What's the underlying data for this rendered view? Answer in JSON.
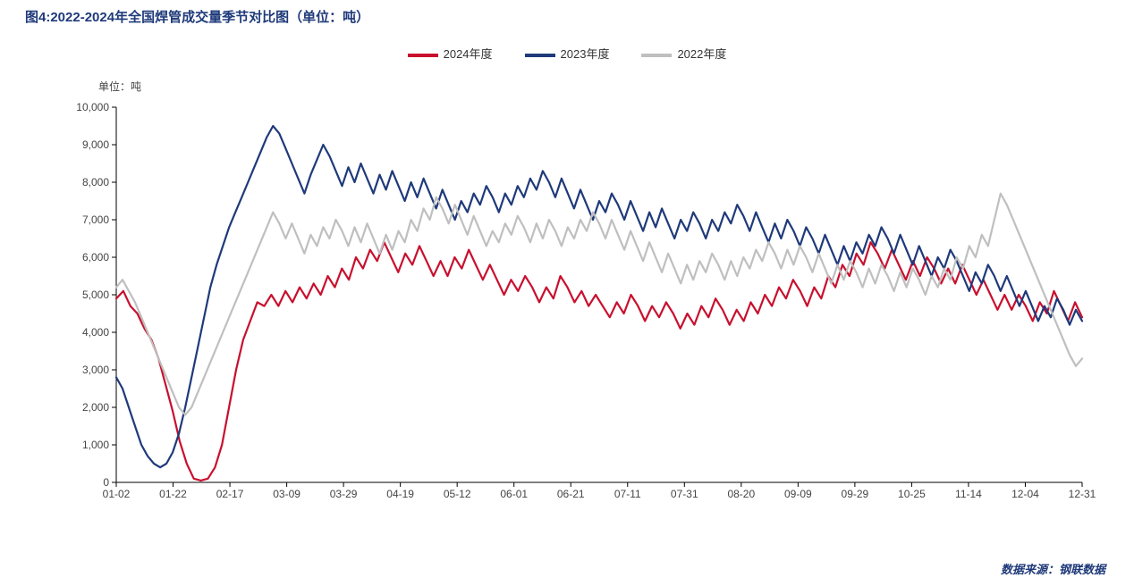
{
  "title": "图4:2022-2024年全国焊管成交量季节对比图（单位：吨）",
  "ylabel": "单位：吨",
  "source": "数据来源：钢联数据",
  "chart": {
    "type": "line",
    "background_color": "#ffffff",
    "axis_color": "#000000",
    "tick_color": "#000000",
    "font_size_ticks": 12,
    "font_size_title": 15,
    "title_color": "#1f3a7a",
    "line_width": 2.2,
    "ylim": [
      0,
      10000
    ],
    "ytick_step": 1000,
    "ytick_labels": [
      "0",
      "1,000",
      "2,000",
      "3,000",
      "4,000",
      "5,000",
      "6,000",
      "7,000",
      "8,000",
      "9,000",
      "10,000"
    ],
    "x_categories": [
      "01-02",
      "01-22",
      "02-17",
      "03-09",
      "03-29",
      "04-19",
      "05-12",
      "06-01",
      "06-21",
      "07-11",
      "07-31",
      "08-20",
      "09-09",
      "09-29",
      "10-25",
      "11-14",
      "12-04",
      "12-31"
    ],
    "legend": {
      "position": "top-center",
      "items": [
        {
          "label": "2024年度",
          "color": "#c8102e"
        },
        {
          "label": "2023年度",
          "color": "#1f3a7a"
        },
        {
          "label": "2022年度",
          "color": "#bfbfbf"
        }
      ]
    },
    "series": [
      {
        "name": "2024年度",
        "color": "#c8102e",
        "data": [
          4900,
          5100,
          4700,
          4500,
          4100,
          3800,
          3300,
          2600,
          1900,
          1100,
          500,
          100,
          50,
          100,
          400,
          1000,
          2000,
          3000,
          3800,
          4300,
          4800,
          4700,
          5000,
          4700,
          5100,
          4800,
          5200,
          4900,
          5300,
          5000,
          5500,
          5200,
          5700,
          5400,
          6000,
          5700,
          6200,
          5900,
          6400,
          6000,
          5600,
          6100,
          5800,
          6300,
          5900,
          5500,
          5900,
          5500,
          6000,
          5700,
          6200,
          5800,
          5400,
          5800,
          5400,
          5000,
          5400,
          5100,
          5500,
          5200,
          4800,
          5200,
          4900,
          5500,
          5200,
          4800,
          5100,
          4700,
          5000,
          4700,
          4400,
          4800,
          4500,
          5000,
          4700,
          4300,
          4700,
          4400,
          4800,
          4500,
          4100,
          4500,
          4200,
          4700,
          4400,
          4900,
          4600,
          4200,
          4600,
          4300,
          4800,
          4500,
          5000,
          4700,
          5200,
          4900,
          5400,
          5100,
          4700,
          5200,
          4900,
          5500,
          5200,
          5800,
          5500,
          6100,
          5800,
          6400,
          6100,
          5700,
          6200,
          5800,
          5400,
          5900,
          5500,
          6000,
          5700,
          5300,
          5700,
          5300,
          5800,
          5400,
          5000,
          5400,
          5000,
          4600,
          5000,
          4600,
          5000,
          4700,
          4300,
          4800,
          4500,
          5100,
          4700,
          4300,
          4800,
          4400
        ]
      },
      {
        "name": "2023年度",
        "color": "#1f3a7a",
        "data": [
          2800,
          2500,
          2000,
          1500,
          1000,
          700,
          500,
          400,
          500,
          800,
          1300,
          2000,
          2800,
          3600,
          4400,
          5200,
          5800,
          6300,
          6800,
          7200,
          7600,
          8000,
          8400,
          8800,
          9200,
          9500,
          9300,
          8900,
          8500,
          8100,
          7700,
          8200,
          8600,
          9000,
          8700,
          8300,
          7900,
          8400,
          8000,
          8500,
          8100,
          7700,
          8200,
          7800,
          8300,
          7900,
          7500,
          8000,
          7600,
          8100,
          7700,
          7300,
          7800,
          7400,
          7000,
          7500,
          7200,
          7700,
          7400,
          7900,
          7600,
          7200,
          7700,
          7400,
          7900,
          7600,
          8100,
          7800,
          8300,
          8000,
          7600,
          8100,
          7700,
          7300,
          7800,
          7400,
          7000,
          7500,
          7200,
          7700,
          7400,
          7000,
          7500,
          7100,
          6700,
          7200,
          6800,
          7300,
          6900,
          6500,
          7000,
          6700,
          7200,
          6900,
          6500,
          7000,
          6700,
          7200,
          6900,
          7400,
          7100,
          6700,
          7200,
          6800,
          6400,
          6900,
          6500,
          7000,
          6700,
          6300,
          6800,
          6500,
          6100,
          6600,
          6200,
          5800,
          6300,
          5900,
          6400,
          6100,
          6600,
          6300,
          6800,
          6500,
          6100,
          6600,
          6200,
          5800,
          6300,
          5900,
          5500,
          6000,
          5700,
          6200,
          5900,
          5500,
          5100,
          5600,
          5300,
          5800,
          5500,
          5100,
          5500,
          5100,
          4700,
          5100,
          4700,
          4300,
          4700,
          4400,
          4900,
          4600,
          4200,
          4600,
          4300
        ]
      },
      {
        "name": "2022年度",
        "color": "#bfbfbf",
        "data": [
          5200,
          5400,
          5100,
          4800,
          4400,
          4000,
          3600,
          3200,
          2800,
          2400,
          2000,
          1800,
          2000,
          2400,
          2800,
          3200,
          3600,
          4000,
          4400,
          4800,
          5200,
          5600,
          6000,
          6400,
          6800,
          7200,
          6900,
          6500,
          6900,
          6500,
          6100,
          6600,
          6300,
          6800,
          6500,
          7000,
          6700,
          6300,
          6800,
          6400,
          6900,
          6500,
          6100,
          6600,
          6200,
          6700,
          6400,
          7000,
          6700,
          7300,
          7000,
          7600,
          7300,
          6900,
          7400,
          7000,
          6600,
          7100,
          6700,
          6300,
          6700,
          6400,
          6900,
          6600,
          7100,
          6800,
          6400,
          6900,
          6500,
          7000,
          6700,
          6300,
          6800,
          6500,
          7000,
          6700,
          7200,
          6900,
          6500,
          7000,
          6600,
          6200,
          6700,
          6300,
          5900,
          6400,
          6000,
          5600,
          6100,
          5700,
          5300,
          5800,
          5400,
          5900,
          5600,
          6100,
          5800,
          5400,
          5900,
          5500,
          6000,
          5700,
          6200,
          5900,
          6400,
          6100,
          5700,
          6200,
          5800,
          6300,
          6000,
          5600,
          6100,
          5700,
          5300,
          5800,
          5400,
          5900,
          5600,
          5200,
          5700,
          5300,
          5800,
          5500,
          5100,
          5600,
          5200,
          5700,
          5400,
          5000,
          5500,
          5200,
          5700,
          5400,
          6000,
          5700,
          6300,
          6000,
          6600,
          6300,
          7000,
          7700,
          7400,
          7000,
          6600,
          6200,
          5800,
          5400,
          5000,
          4600,
          4200,
          3800,
          3400,
          3100,
          3300
        ]
      }
    ]
  }
}
